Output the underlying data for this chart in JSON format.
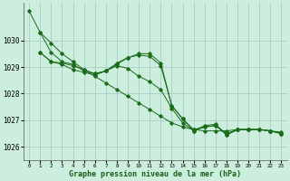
{
  "xlabel": "Graphe pression niveau de la mer (hPa)",
  "background_color": "#cceedd",
  "grid_color": "#aacccc",
  "line_color": "#1a6b1a",
  "xlim": [
    -0.5,
    23.5
  ],
  "ylim": [
    1025.5,
    1031.4
  ],
  "yticks": [
    1026,
    1027,
    1028,
    1029,
    1030
  ],
  "xticks": [
    0,
    1,
    2,
    3,
    4,
    5,
    6,
    7,
    8,
    9,
    10,
    11,
    12,
    13,
    14,
    15,
    16,
    17,
    18,
    19,
    20,
    21,
    22,
    23
  ],
  "series": [
    {
      "x": [
        0,
        1,
        2,
        3,
        4,
        5,
        6,
        7,
        8,
        9,
        10,
        11,
        12,
        13,
        14,
        15,
        16,
        17,
        18,
        19,
        20,
        21,
        22,
        23
      ],
      "y": [
        1031.1,
        1030.3,
        1029.9,
        1029.5,
        1029.2,
        1028.9,
        1028.65,
        1028.4,
        1028.15,
        1027.9,
        1027.65,
        1027.4,
        1027.15,
        1026.9,
        1026.75,
        1026.65,
        1026.6,
        1026.6,
        1026.6,
        1026.65,
        1026.65,
        1026.65,
        1026.6,
        1026.55
      ]
    },
    {
      "x": [
        1,
        2,
        3,
        4,
        5,
        6,
        7,
        8,
        9,
        10,
        11,
        12,
        13,
        14,
        15,
        16,
        17,
        18,
        19,
        20,
        21,
        22,
        23
      ],
      "y": [
        1029.55,
        1029.2,
        1029.15,
        1029.05,
        1028.9,
        1028.75,
        1028.85,
        1029.15,
        1029.35,
        1029.45,
        1029.4,
        1029.05,
        1027.55,
        1027.05,
        1026.65,
        1026.75,
        1026.8,
        1026.5,
        1026.65,
        1026.65,
        1026.65,
        1026.6,
        1026.5
      ]
    },
    {
      "x": [
        1,
        2,
        3,
        4,
        5,
        6,
        7,
        8,
        9,
        10,
        11,
        12,
        13,
        14,
        15,
        16,
        17,
        18,
        19,
        20,
        21,
        22,
        23
      ],
      "y": [
        1029.55,
        1029.2,
        1029.1,
        1028.9,
        1028.8,
        1028.7,
        1028.85,
        1029.05,
        1028.95,
        1028.65,
        1028.45,
        1028.15,
        1027.45,
        1026.9,
        1026.6,
        1026.8,
        1026.85,
        1026.45,
        1026.65,
        1026.65,
        1026.65,
        1026.6,
        1026.5
      ]
    },
    {
      "x": [
        1,
        2,
        3,
        4,
        5,
        6,
        7,
        8,
        9,
        10,
        11,
        12,
        13,
        14,
        15,
        16,
        17,
        18,
        19,
        20,
        21,
        22,
        23
      ],
      "y": [
        1030.3,
        1029.55,
        1029.2,
        1029.1,
        1028.85,
        1028.75,
        1028.85,
        1029.1,
        1029.35,
        1029.5,
        1029.5,
        1029.15,
        1027.55,
        1027.05,
        1026.6,
        1026.75,
        1026.8,
        1026.45,
        1026.65,
        1026.65,
        1026.65,
        1026.6,
        1026.5
      ]
    }
  ]
}
